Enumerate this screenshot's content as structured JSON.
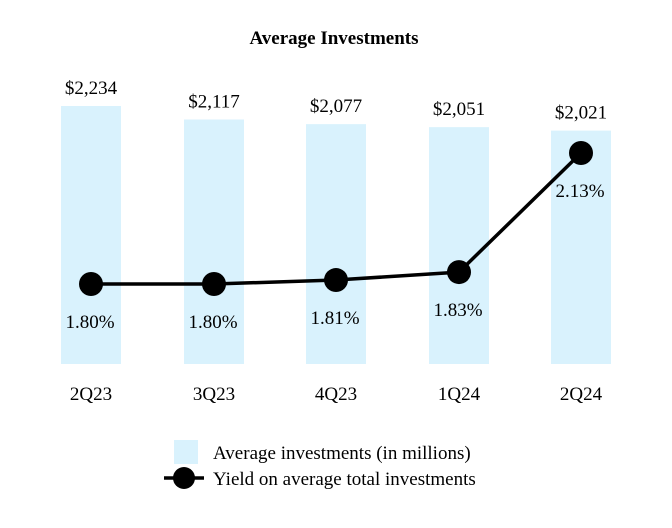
{
  "chart_data": {
    "type": "bar+line",
    "title": "Average Investments",
    "categories": [
      "2Q23",
      "3Q23",
      "4Q23",
      "1Q24",
      "2Q24"
    ],
    "series": [
      {
        "name": "Average investments (in millions)",
        "kind": "bar",
        "axis": "left",
        "values": [
          2234,
          2117,
          2077,
          2051,
          2021
        ],
        "labels": [
          "$2,234",
          "$2,117",
          "$2,077",
          "$2,051",
          "$2,021"
        ],
        "color": "#d9f2fd"
      },
      {
        "name": "Yield on average total investments",
        "kind": "line",
        "axis": "right",
        "values": [
          1.8,
          1.8,
          1.81,
          1.83,
          2.13
        ],
        "labels": [
          "1.80%",
          "1.80%",
          "1.81%",
          "1.83%",
          "2.13%"
        ],
        "color": "#000000"
      }
    ],
    "bar_axis_range": [
      0,
      2234
    ],
    "line_axis_range": [
      1.5,
      2.25
    ],
    "legend": "bottom-center",
    "grid": false
  }
}
